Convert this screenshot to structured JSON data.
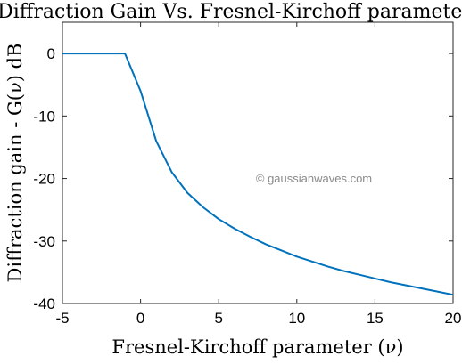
{
  "chart_data": {
    "type": "line",
    "title": "Diffraction Gain Vs. Fresnel-Kirchoff parameter",
    "xlabel": "Fresnel-Kirchoff parameter (ν)",
    "ylabel": "Diffraction gain - G(ν) dB",
    "xlim": [
      -5,
      20
    ],
    "ylim": [
      -40,
      5
    ],
    "xticks": [
      -5,
      0,
      5,
      10,
      15,
      20
    ],
    "yticks": [
      0,
      -10,
      -20,
      -30,
      -40
    ],
    "grid": false,
    "legend": "none",
    "series": [
      {
        "color": "#0072bd",
        "x": [
          -5,
          -1,
          0,
          1,
          2,
          3,
          4,
          5,
          6,
          7,
          8,
          9,
          10,
          11,
          12,
          13,
          14,
          15,
          16,
          17,
          18,
          19,
          20
        ],
        "y": [
          0,
          0,
          -6,
          -14,
          -19,
          -22.3,
          -24.6,
          -26.5,
          -28,
          -29.3,
          -30.5,
          -31.5,
          -32.5,
          -33.3,
          -34.1,
          -34.8,
          -35.4,
          -36,
          -36.6,
          -37.1,
          -37.6,
          -38.1,
          -38.6
        ]
      }
    ],
    "watermark": "© gaussianwaves.com"
  }
}
